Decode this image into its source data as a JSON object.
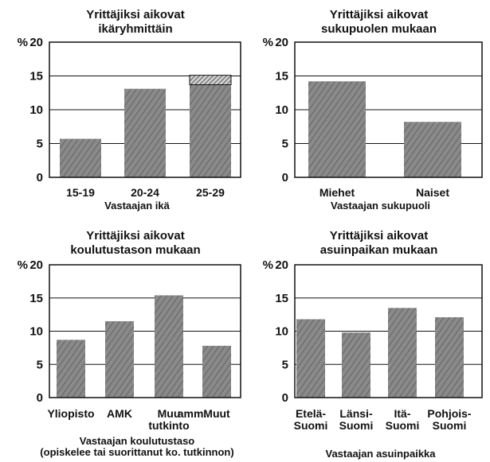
{
  "colors": {
    "bar": "#8a8a8a",
    "stripe": "#6a6a6a",
    "axis": "#111111",
    "background": "#ffffff"
  },
  "chart_data": [
    {
      "type": "bar",
      "title": "Yrittäjiksi aikovat",
      "subtitle": "ikäryhmittäin",
      "unit_label": "%",
      "categories": [
        "15-19",
        "20-24",
        "25-29"
      ],
      "category_lines": [
        [
          "15-19"
        ],
        [
          "20-24"
        ],
        [
          "25-29"
        ]
      ],
      "values": [
        5.7,
        13.1,
        13.7
      ],
      "stacked_extra": [
        0,
        0,
        1.4
      ],
      "xlabel": [
        "Vastaajan ikä"
      ],
      "ylim": [
        0,
        20
      ],
      "yticks": [
        0,
        5,
        10,
        15,
        20
      ],
      "grid": true
    },
    {
      "type": "bar",
      "title": "Yrittäjiksi aikovat",
      "subtitle": "sukupuolen mukaan",
      "unit_label": "%",
      "categories": [
        "Miehet",
        "Naiset"
      ],
      "category_lines": [
        [
          "Miehet"
        ],
        [
          "Naiset"
        ]
      ],
      "values": [
        14.2,
        8.2
      ],
      "xlabel": [
        "Vastaajan sukupuoli"
      ],
      "ylim": [
        0,
        20
      ],
      "yticks": [
        0,
        5,
        10,
        15,
        20
      ],
      "grid": true
    },
    {
      "type": "bar",
      "title": "Yrittäjiksi aikovat",
      "subtitle": "koulutustason mukaan",
      "unit_label": "%",
      "categories": [
        "Yliopisto",
        "AMK",
        "Muu amm. tutkinto",
        "Muut"
      ],
      "category_lines": [
        [
          "Yliopisto"
        ],
        [
          "AMK"
        ],
        [
          "Muu",
          "tutkinto"
        ],
        [
          "Muut"
        ]
      ],
      "extra_category_text": "amm.",
      "values": [
        8.7,
        11.5,
        15.4,
        7.8
      ],
      "xlabel": [
        "Vastaajan koulutustaso",
        "(opiskelee tai suorittanut ko. tutkinnon)"
      ],
      "ylim": [
        0,
        20
      ],
      "yticks": [
        0,
        5,
        10,
        15,
        20
      ],
      "grid": true
    },
    {
      "type": "bar",
      "title": "Yrittäjiksi aikovat",
      "subtitle": "asuinpaikan mukaan",
      "unit_label": "%",
      "categories": [
        "Etelä-Suomi",
        "Länsi-Suomi",
        "Itä-Suomi",
        "Pohjois-Suomi"
      ],
      "category_lines": [
        [
          "Etelä-",
          "Suomi"
        ],
        [
          "Länsi-",
          "Suomi"
        ],
        [
          "Itä-",
          "Suomi"
        ],
        [
          "Pohjois-",
          "Suomi"
        ]
      ],
      "values": [
        11.8,
        9.8,
        13.5,
        12.1
      ],
      "xlabel": [
        "Vastaajan asuinpaikka"
      ],
      "ylim": [
        0,
        20
      ],
      "yticks": [
        0,
        5,
        10,
        15,
        20
      ],
      "grid": true
    }
  ]
}
